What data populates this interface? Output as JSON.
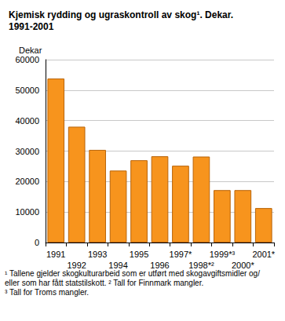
{
  "chart_data": {
    "type": "bar",
    "title": "Kjemisk rydding og ugraskontroll av skog¹. Dekar.\n1991-2001",
    "y_label": "Dekar",
    "categories": [
      "1991",
      "1992",
      "1993",
      "1994",
      "1995",
      "1996",
      "1997*",
      "1998*²",
      "1999*³",
      "2000*",
      "2001*"
    ],
    "values": [
      53800,
      38000,
      30400,
      23600,
      27000,
      28300,
      25200,
      28200,
      17200,
      17200,
      11300
    ],
    "color": "#f7941d",
    "ylim": [
      0,
      60000
    ],
    "yticks": [
      0,
      10000,
      20000,
      30000,
      40000,
      50000,
      60000
    ],
    "grid": true,
    "annotations": [
      "¹ Tallene gjelder skogkulturarbeid som er utført med skogavgiftsmidler og/eller som har fått statstilskott.",
      "² Tall for Finnmark mangler.",
      "³ Tall for Troms mangler."
    ]
  }
}
